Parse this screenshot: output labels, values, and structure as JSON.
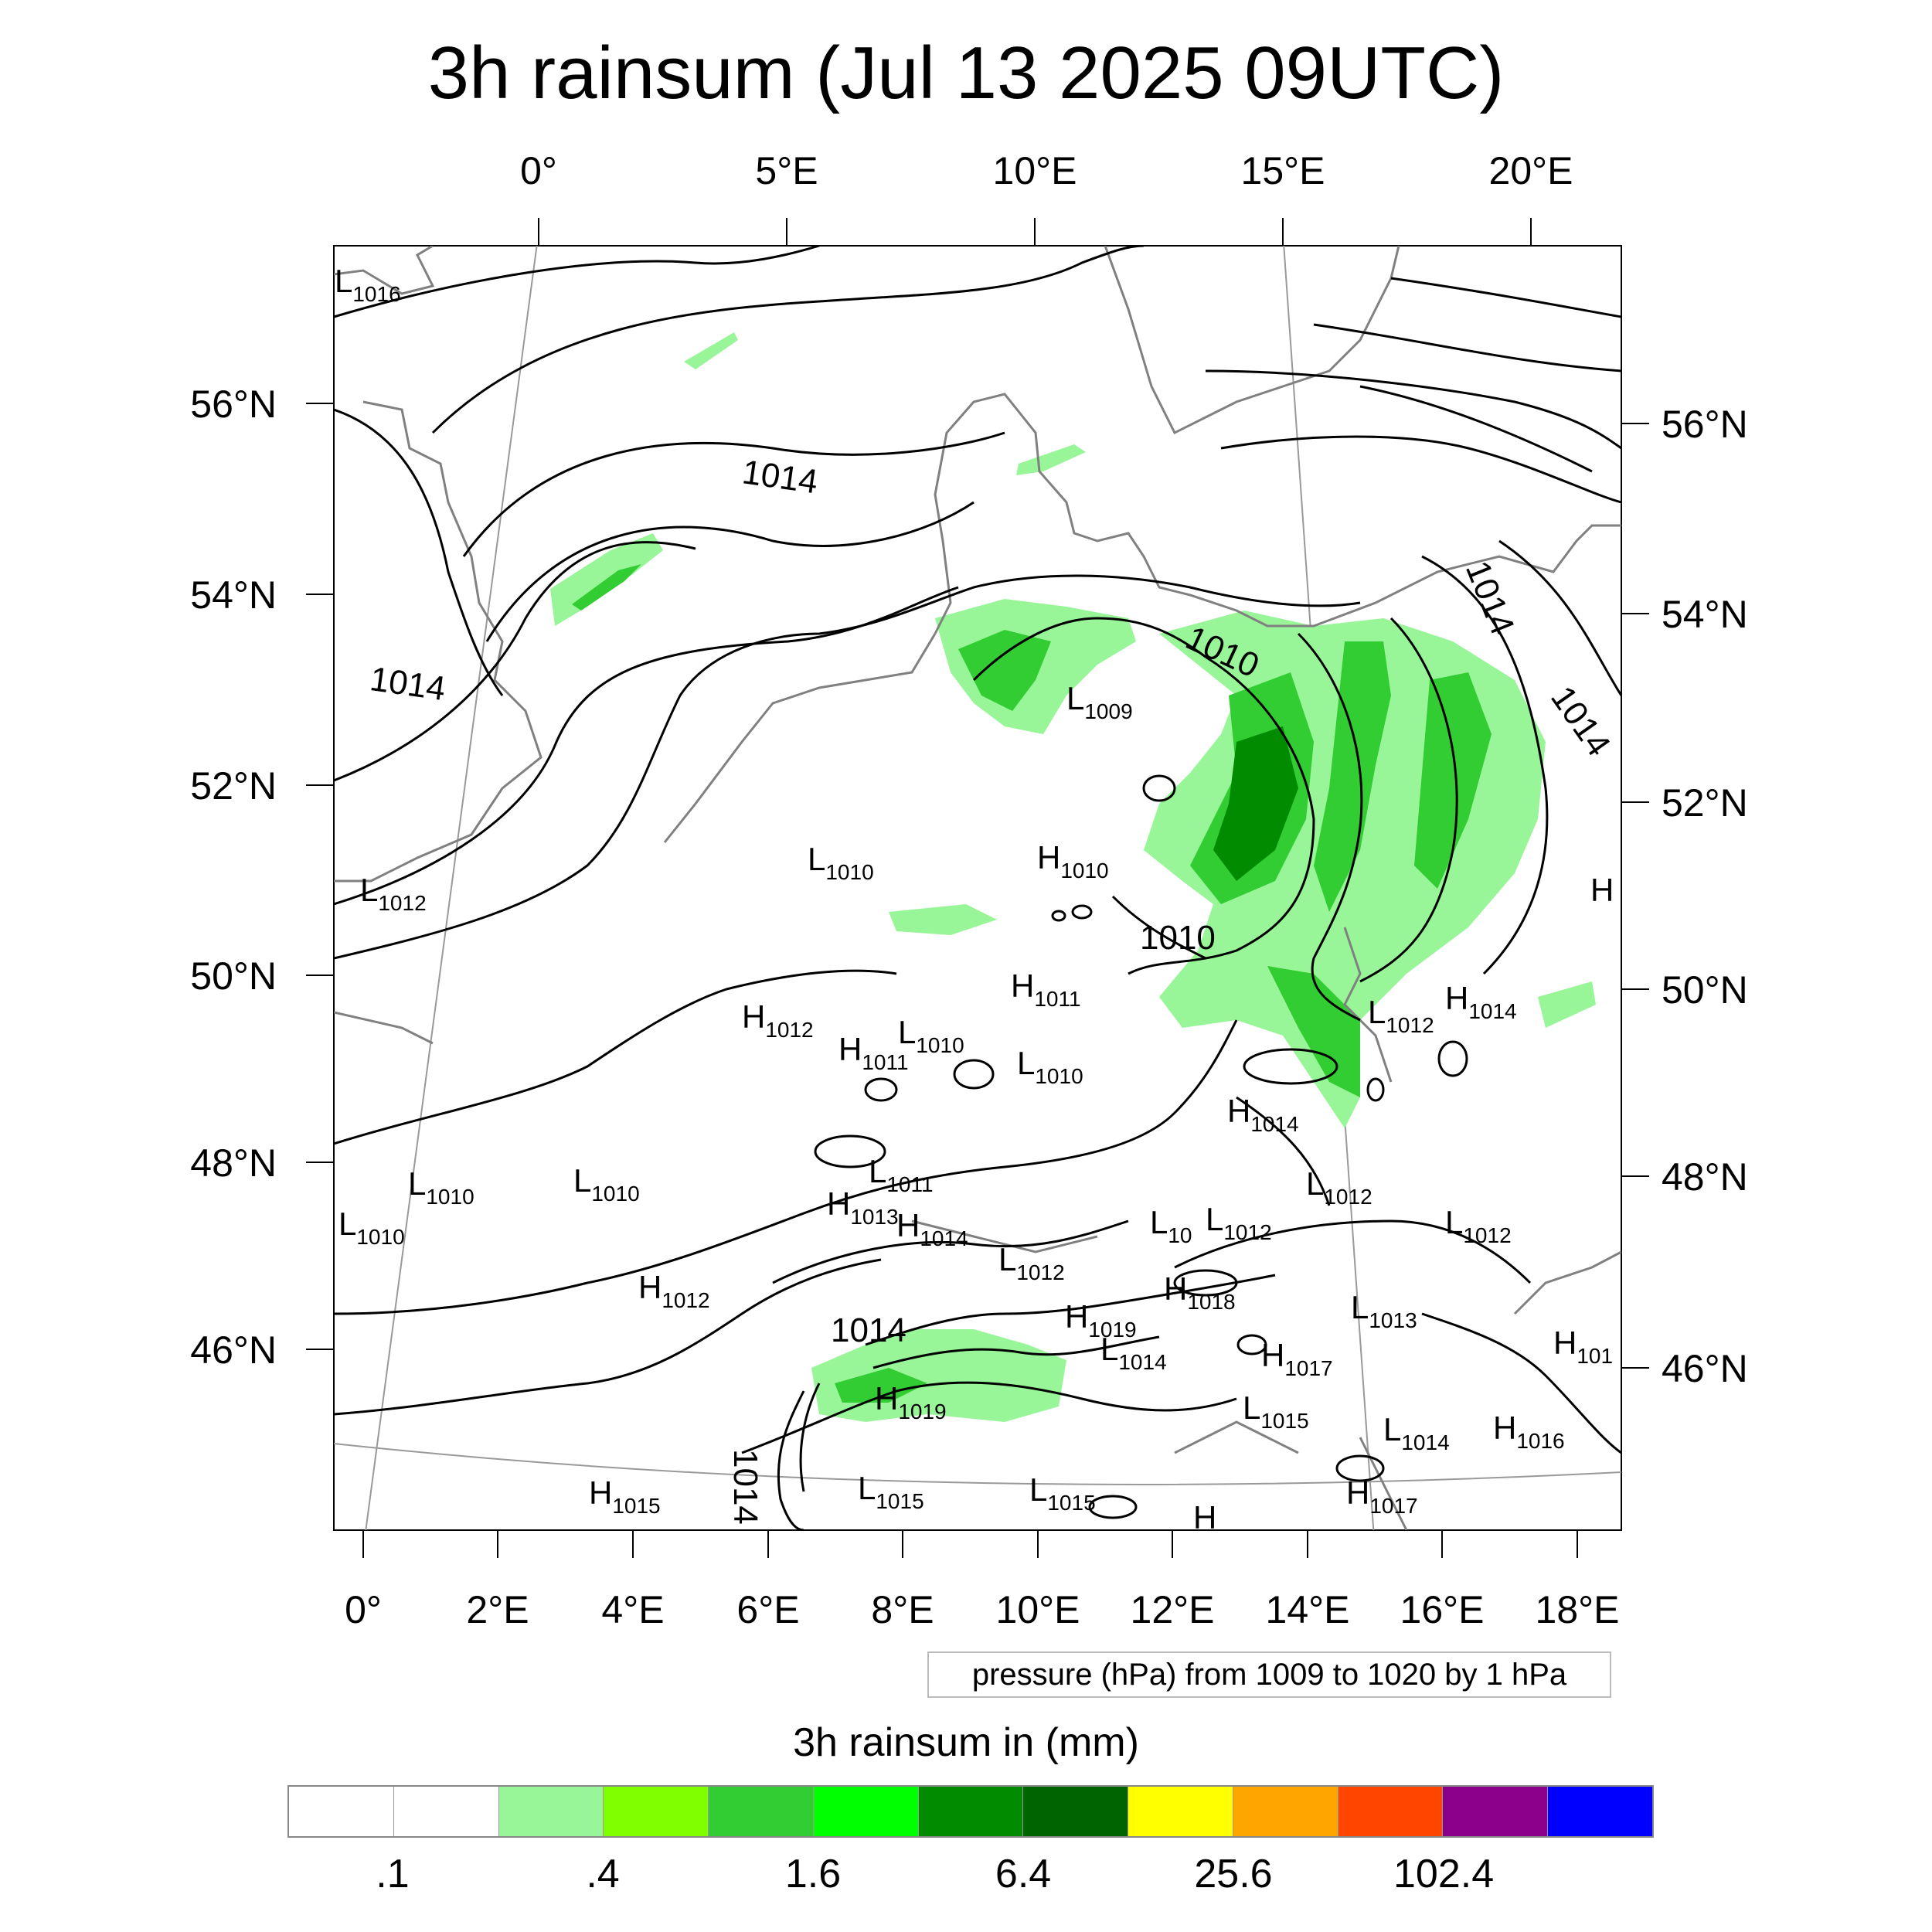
{
  "title": "3h rainsum (Jul 13 2025 09UTC)",
  "top_lon_labels": [
    "0°",
    "5°E",
    "10°E",
    "15°E",
    "20°E"
  ],
  "bottom_lon_labels": [
    "0°",
    "2°E",
    "4°E",
    "6°E",
    "8°E",
    "10°E",
    "12°E",
    "14°E",
    "16°E",
    "18°E"
  ],
  "left_lat_labels": [
    "56°N",
    "54°N",
    "52°N",
    "50°N",
    "48°N",
    "46°N"
  ],
  "right_lat_labels": [
    "56°N",
    "54°N",
    "52°N",
    "50°N",
    "48°N",
    "46°N"
  ],
  "pressure_info": "pressure (hPa) from 1009 to 1020 by 1 hPa",
  "colorbar": {
    "title": "3h rainsum in (mm)",
    "colors": [
      "#ffffff",
      "#ffffff",
      "#98f598",
      "#80ff00",
      "#32cd32",
      "#00ff00",
      "#008b00",
      "#006400",
      "#ffff00",
      "#ffa500",
      "#ff4500",
      "#8b008b",
      "#0000ff"
    ],
    "labels": [
      ".1",
      ".4",
      "1.6",
      "6.4",
      "25.6",
      "102.4"
    ]
  },
  "contour_labels": [
    "1014",
    "1014",
    "1010",
    "1014",
    "1014",
    "1010",
    "1014",
    "1014"
  ],
  "pressure_centers": [
    {
      "type": "L",
      "value": "1016"
    },
    {
      "type": "L",
      "value": "1009"
    },
    {
      "type": "L",
      "value": "1010"
    },
    {
      "type": "H",
      "value": "1010"
    },
    {
      "type": "L",
      "value": "1012"
    },
    {
      "type": "H",
      "value": "1011"
    },
    {
      "type": "H",
      "value": "1012"
    },
    {
      "type": "H",
      "value": "1011"
    },
    {
      "type": "L",
      "value": "1010"
    },
    {
      "type": "L",
      "value": "1010"
    },
    {
      "type": "L",
      "value": "1012"
    },
    {
      "type": "H",
      "value": "1014"
    },
    {
      "type": "H",
      "value": "1014"
    },
    {
      "type": "L",
      "value": "1010"
    },
    {
      "type": "L",
      "value": "1010"
    },
    {
      "type": "L",
      "value": "1010"
    },
    {
      "type": "L",
      "value": "1011"
    },
    {
      "type": "H",
      "value": "1013"
    },
    {
      "type": "H",
      "value": "1014"
    },
    {
      "type": "L",
      "value": "1012"
    },
    {
      "type": "L",
      "value": "1012"
    },
    {
      "type": "L",
      "value": "10"
    },
    {
      "type": "L",
      "value": "1012"
    },
    {
      "type": "L",
      "value": "1012"
    },
    {
      "type": "H",
      "value": "1012"
    },
    {
      "type": "H",
      "value": "1018"
    },
    {
      "type": "L",
      "value": "1013"
    },
    {
      "type": "H",
      "value": "1019"
    },
    {
      "type": "L",
      "value": "1014"
    },
    {
      "type": "H",
      "value": "1017"
    },
    {
      "type": "H",
      "value": "1019"
    },
    {
      "type": "L",
      "value": "1015"
    },
    {
      "type": "L",
      "value": "1014"
    },
    {
      "type": "H",
      "value": "1016"
    },
    {
      "type": "H",
      "value": "101"
    },
    {
      "type": "H",
      "value": "1015"
    },
    {
      "type": "L",
      "value": "1015"
    },
    {
      "type": "L",
      "value": "1015"
    },
    {
      "type": "H",
      "value": "1017"
    },
    {
      "type": "H",
      "value": ""
    },
    {
      "type": "H",
      "value": ""
    }
  ]
}
